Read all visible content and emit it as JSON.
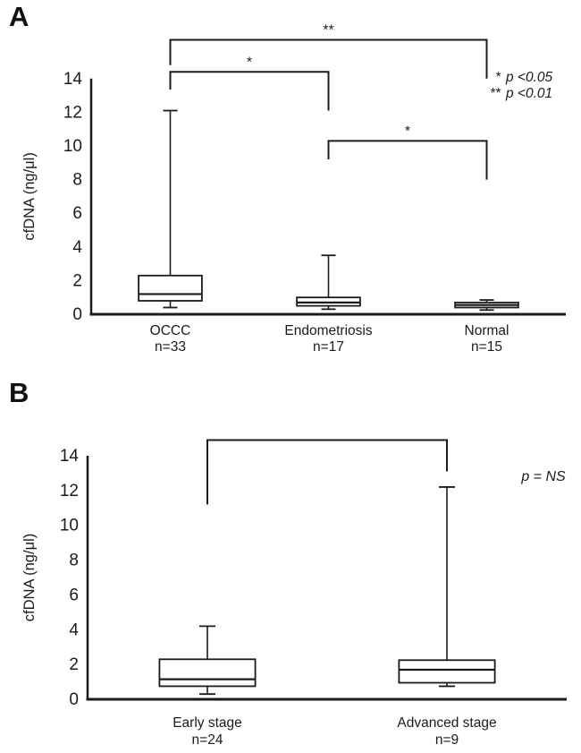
{
  "figure": {
    "background": "#ffffff",
    "ink": "#1b1b1b",
    "box_fill": "#ffffff"
  },
  "chart_data": [
    {
      "type": "box",
      "panel_label": "A",
      "ylabel": "cfDNA (ng/μl)",
      "ylim": [
        0,
        14
      ],
      "yticks": [
        0,
        2,
        4,
        6,
        8,
        10,
        12,
        14
      ],
      "grid": false,
      "categories": [
        "OCCC",
        "Endometriosis",
        "Normal"
      ],
      "category_sublabels": [
        "n=33",
        "n=17",
        "n=15"
      ],
      "series": [
        {
          "name": "OCCC",
          "n": 33,
          "whisker_low": 0.4,
          "q1": 0.8,
          "median": 1.2,
          "q3": 2.3,
          "whisker_high": 12.1
        },
        {
          "name": "Endometriosis",
          "n": 17,
          "whisker_low": 0.3,
          "q1": 0.5,
          "median": 0.7,
          "q3": 1.0,
          "whisker_high": 3.5
        },
        {
          "name": "Normal",
          "n": 15,
          "whisker_low": 0.25,
          "q1": 0.4,
          "median": 0.55,
          "q3": 0.7,
          "whisker_high": 0.85
        }
      ],
      "significance_brackets": [
        {
          "from": "OCCC",
          "to": "Normal",
          "label": "**",
          "bar_y": 16.3,
          "from_end_y": 14.8,
          "to_end_y": 14.0
        },
        {
          "from": "OCCC",
          "to": "Endometriosis",
          "label": "*",
          "bar_y": 14.4,
          "from_end_y": 13.35,
          "to_end_y": 12.1
        },
        {
          "from": "Endometriosis",
          "to": "Normal",
          "label": "*",
          "bar_y": 10.3,
          "from_end_y": 9.2,
          "to_end_y": 8.0
        }
      ],
      "legend": [
        {
          "marker": "*",
          "text": "p <0.05"
        },
        {
          "marker": "**",
          "text": "p <0.01"
        }
      ],
      "annotation": ""
    },
    {
      "type": "box",
      "panel_label": "B",
      "ylabel": "cfDNA (ng/μl)",
      "ylim": [
        0,
        14
      ],
      "yticks": [
        0,
        2,
        4,
        6,
        8,
        10,
        12,
        14
      ],
      "grid": false,
      "categories": [
        "Early stage",
        "Advanced stage"
      ],
      "category_sublabels": [
        "n=24",
        "n=9"
      ],
      "series": [
        {
          "name": "Early stage",
          "n": 24,
          "whisker_low": 0.3,
          "q1": 0.75,
          "median": 1.15,
          "q3": 2.3,
          "whisker_high": 4.2
        },
        {
          "name": "Advanced stage",
          "n": 9,
          "whisker_low": 0.75,
          "q1": 0.95,
          "median": 1.7,
          "q3": 2.25,
          "whisker_high": 12.2
        }
      ],
      "significance_brackets": [
        {
          "from": "Early stage",
          "to": "Advanced stage",
          "label": "",
          "bar_y": 14.9,
          "from_end_y": 11.2,
          "to_end_y": 13.1
        }
      ],
      "legend": [],
      "annotation": "p = NS"
    }
  ]
}
